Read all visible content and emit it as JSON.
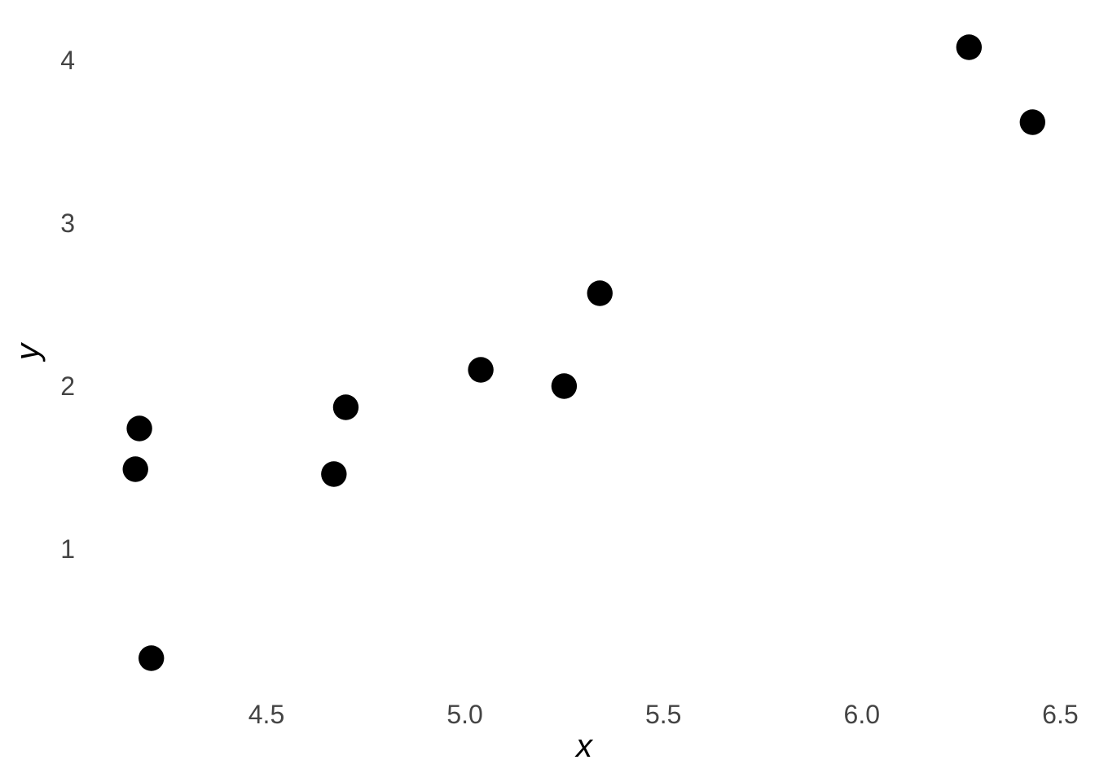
{
  "chart_data": {
    "type": "scatter",
    "title": "",
    "xlabel": "x",
    "ylabel": "y",
    "x_ticks": [
      {
        "value": 4.5,
        "label": "4.5"
      },
      {
        "value": 5.0,
        "label": "5.0"
      },
      {
        "value": 5.5,
        "label": "5.5"
      },
      {
        "value": 6.0,
        "label": "6.0"
      },
      {
        "value": 6.5,
        "label": "6.5"
      }
    ],
    "y_ticks": [
      {
        "value": 1,
        "label": "1"
      },
      {
        "value": 2,
        "label": "2"
      },
      {
        "value": 3,
        "label": "3"
      },
      {
        "value": 4,
        "label": "4"
      }
    ],
    "xlim": [
      3.83,
      6.59
    ],
    "ylim": [
      -0.38,
      4.38
    ],
    "grid": "off",
    "legend": "none",
    "points": [
      {
        "x": 4.18,
        "y": 1.74
      },
      {
        "x": 4.17,
        "y": 1.49
      },
      {
        "x": 4.21,
        "y": 0.33
      },
      {
        "x": 4.7,
        "y": 1.87
      },
      {
        "x": 4.67,
        "y": 1.46
      },
      {
        "x": 5.04,
        "y": 2.1
      },
      {
        "x": 5.25,
        "y": 2.0
      },
      {
        "x": 5.34,
        "y": 2.57
      },
      {
        "x": 6.27,
        "y": 4.08
      },
      {
        "x": 6.43,
        "y": 3.62
      }
    ],
    "colors": {
      "background": "#ffffff",
      "point": "#000000",
      "tick_label": "#444444",
      "axis_title": "#000000"
    }
  }
}
